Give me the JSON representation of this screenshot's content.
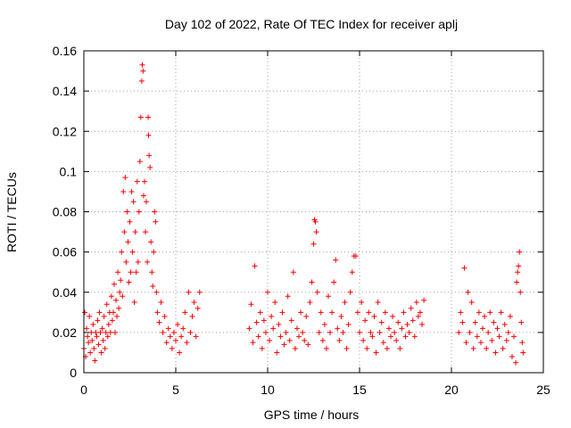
{
  "chart_data": {
    "type": "scatter",
    "title": "Day 102 of 2022, Rate Of TEC Index for receiver aplj",
    "xlabel": "GPS time / hours",
    "ylabel": "ROTI / TECUs",
    "xlim": [
      0,
      25
    ],
    "ylim": [
      0,
      0.16
    ],
    "x_ticks": [
      0,
      5,
      10,
      15,
      20,
      25
    ],
    "y_ticks": [
      0,
      0.02,
      0.04,
      0.06,
      0.08,
      0.1,
      0.12,
      0.14,
      0.16
    ],
    "x_tick_labels": [
      "0",
      "5",
      "10",
      "15",
      "20",
      "25"
    ],
    "y_tick_labels": [
      "0",
      "0.02",
      "0.04",
      "0.06",
      "0.08",
      "0.1",
      "0.12",
      "0.14",
      "0.16"
    ],
    "grid": true,
    "marker": "+",
    "color": "#ff0000",
    "series": [
      {
        "points": [
          [
            0.0,
            0.012
          ],
          [
            0.05,
            0.03
          ],
          [
            0.1,
            0.008
          ],
          [
            0.15,
            0.022
          ],
          [
            0.2,
            0.018
          ],
          [
            0.25,
            0.015
          ],
          [
            0.3,
            0.028
          ],
          [
            0.35,
            0.01
          ],
          [
            0.4,
            0.02
          ],
          [
            0.45,
            0.016
          ],
          [
            0.5,
            0.024
          ],
          [
            0.55,
            0.012
          ],
          [
            0.6,
            0.006
          ],
          [
            0.65,
            0.02
          ],
          [
            0.7,
            0.018
          ],
          [
            0.75,
            0.026
          ],
          [
            0.8,
            0.014
          ],
          [
            0.85,
            0.03
          ],
          [
            0.9,
            0.02
          ],
          [
            0.95,
            0.01
          ],
          [
            1.0,
            0.022
          ],
          [
            1.05,
            0.016
          ],
          [
            1.1,
            0.028
          ],
          [
            1.15,
            0.012
          ],
          [
            1.2,
            0.02
          ],
          [
            1.25,
            0.034
          ],
          [
            1.3,
            0.018
          ],
          [
            1.35,
            0.024
          ],
          [
            1.4,
            0.03
          ],
          [
            1.45,
            0.02
          ],
          [
            1.5,
            0.038
          ],
          [
            1.55,
            0.026
          ],
          [
            1.6,
            0.03
          ],
          [
            1.65,
            0.044
          ],
          [
            1.7,
            0.02
          ],
          [
            1.75,
            0.036
          ],
          [
            1.8,
            0.028
          ],
          [
            1.85,
            0.05
          ],
          [
            1.9,
            0.032
          ],
          [
            1.95,
            0.04
          ],
          [
            2.0,
            0.046
          ],
          [
            2.05,
            0.06
          ],
          [
            2.1,
            0.038
          ],
          [
            2.15,
            0.09
          ],
          [
            2.2,
            0.07
          ],
          [
            2.25,
            0.097
          ],
          [
            2.3,
            0.055
          ],
          [
            2.35,
            0.08
          ],
          [
            2.4,
            0.065
          ],
          [
            2.45,
            0.045
          ],
          [
            2.5,
            0.075
          ],
          [
            2.55,
            0.05
          ],
          [
            2.6,
            0.09
          ],
          [
            2.65,
            0.06
          ],
          [
            2.7,
            0.085
          ],
          [
            2.75,
            0.035
          ],
          [
            2.8,
            0.07
          ],
          [
            2.85,
            0.05
          ],
          [
            2.9,
            0.095
          ],
          [
            2.95,
            0.055
          ],
          [
            3.0,
            0.08
          ],
          [
            3.05,
            0.105
          ],
          [
            3.1,
            0.127
          ],
          [
            3.15,
            0.145
          ],
          [
            3.18,
            0.153
          ],
          [
            3.22,
            0.15
          ],
          [
            3.25,
            0.088
          ],
          [
            3.3,
            0.095
          ],
          [
            3.35,
            0.07
          ],
          [
            3.4,
            0.085
          ],
          [
            3.45,
            0.055
          ],
          [
            3.5,
            0.127
          ],
          [
            3.52,
            0.118
          ],
          [
            3.55,
            0.108
          ],
          [
            3.6,
            0.102
          ],
          [
            3.65,
            0.065
          ],
          [
            3.7,
            0.05
          ],
          [
            3.75,
            0.043
          ],
          [
            3.8,
            0.06
          ],
          [
            3.85,
            0.08
          ],
          [
            3.9,
            0.075
          ],
          [
            3.95,
            0.04
          ],
          [
            4.0,
            0.03
          ],
          [
            4.1,
            0.025
          ],
          [
            4.2,
            0.035
          ],
          [
            4.3,
            0.02
          ],
          [
            4.4,
            0.028
          ],
          [
            4.5,
            0.015
          ],
          [
            4.6,
            0.022
          ],
          [
            4.7,
            0.018
          ],
          [
            4.8,
            0.012
          ],
          [
            4.9,
            0.02
          ],
          [
            5.0,
            0.016
          ],
          [
            5.1,
            0.024
          ],
          [
            5.2,
            0.01
          ],
          [
            5.3,
            0.018
          ],
          [
            5.4,
            0.022
          ],
          [
            5.5,
            0.03
          ],
          [
            5.6,
            0.015
          ],
          [
            5.7,
            0.04
          ],
          [
            5.8,
            0.02
          ],
          [
            5.9,
            0.028
          ],
          [
            6.0,
            0.035
          ],
          [
            6.1,
            0.018
          ],
          [
            6.2,
            0.032
          ],
          [
            6.3,
            0.04
          ],
          [
            9.0,
            0.022
          ],
          [
            9.1,
            0.034
          ],
          [
            9.2,
            0.015
          ],
          [
            9.3,
            0.053
          ],
          [
            9.4,
            0.025
          ],
          [
            9.5,
            0.018
          ],
          [
            9.6,
            0.03
          ],
          [
            9.7,
            0.012
          ],
          [
            9.8,
            0.026
          ],
          [
            9.9,
            0.02
          ],
          [
            10.0,
            0.04
          ],
          [
            10.1,
            0.016
          ],
          [
            10.2,
            0.028
          ],
          [
            10.3,
            0.022
          ],
          [
            10.4,
            0.035
          ],
          [
            10.5,
            0.01
          ],
          [
            10.6,
            0.024
          ],
          [
            10.7,
            0.018
          ],
          [
            10.8,
            0.03
          ],
          [
            10.9,
            0.014
          ],
          [
            11.0,
            0.02
          ],
          [
            11.1,
            0.038
          ],
          [
            11.2,
            0.016
          ],
          [
            11.3,
            0.026
          ],
          [
            11.4,
            0.05
          ],
          [
            11.5,
            0.012
          ],
          [
            11.6,
            0.022
          ],
          [
            11.7,
            0.018
          ],
          [
            11.8,
            0.03
          ],
          [
            11.9,
            0.02
          ],
          [
            12.0,
            0.016
          ],
          [
            12.1,
            0.028
          ],
          [
            12.2,
            0.014
          ],
          [
            12.3,
            0.035
          ],
          [
            12.4,
            0.045
          ],
          [
            12.5,
            0.064
          ],
          [
            12.55,
            0.076
          ],
          [
            12.6,
            0.075
          ],
          [
            12.65,
            0.07
          ],
          [
            12.7,
            0.04
          ],
          [
            12.8,
            0.02
          ],
          [
            12.9,
            0.03
          ],
          [
            13.0,
            0.016
          ],
          [
            13.1,
            0.024
          ],
          [
            13.2,
            0.012
          ],
          [
            13.3,
            0.038
          ],
          [
            13.4,
            0.02
          ],
          [
            13.5,
            0.03
          ],
          [
            13.6,
            0.045
          ],
          [
            13.7,
            0.056
          ],
          [
            13.8,
            0.022
          ],
          [
            13.9,
            0.016
          ],
          [
            14.0,
            0.028
          ],
          [
            14.1,
            0.02
          ],
          [
            14.2,
            0.035
          ],
          [
            14.3,
            0.012
          ],
          [
            14.4,
            0.024
          ],
          [
            14.5,
            0.04
          ],
          [
            14.6,
            0.05
          ],
          [
            14.7,
            0.058
          ],
          [
            14.8,
            0.058
          ],
          [
            14.9,
            0.03
          ],
          [
            15.0,
            0.02
          ],
          [
            15.1,
            0.035
          ],
          [
            15.2,
            0.016
          ],
          [
            15.3,
            0.026
          ],
          [
            15.4,
            0.012
          ],
          [
            15.5,
            0.03
          ],
          [
            15.6,
            0.02
          ],
          [
            15.7,
            0.018
          ],
          [
            15.8,
            0.028
          ],
          [
            15.9,
            0.01
          ],
          [
            16.0,
            0.035
          ],
          [
            16.1,
            0.02
          ],
          [
            16.2,
            0.025
          ],
          [
            16.3,
            0.015
          ],
          [
            16.4,
            0.03
          ],
          [
            16.5,
            0.012
          ],
          [
            16.6,
            0.022
          ],
          [
            16.7,
            0.018
          ],
          [
            16.8,
            0.028
          ],
          [
            16.9,
            0.02
          ],
          [
            17.0,
            0.016
          ],
          [
            17.1,
            0.025
          ],
          [
            17.2,
            0.012
          ],
          [
            17.3,
            0.022
          ],
          [
            17.4,
            0.03
          ],
          [
            17.5,
            0.018
          ],
          [
            17.6,
            0.024
          ],
          [
            17.7,
            0.02
          ],
          [
            17.8,
            0.032
          ],
          [
            17.9,
            0.026
          ],
          [
            18.0,
            0.018
          ],
          [
            18.1,
            0.035
          ],
          [
            18.2,
            0.028
          ],
          [
            18.3,
            0.03
          ],
          [
            18.4,
            0.024
          ],
          [
            18.5,
            0.036
          ],
          [
            20.4,
            0.02
          ],
          [
            20.5,
            0.03
          ],
          [
            20.6,
            0.025
          ],
          [
            20.7,
            0.052
          ],
          [
            20.8,
            0.015
          ],
          [
            20.9,
            0.04
          ],
          [
            21.0,
            0.02
          ],
          [
            21.1,
            0.035
          ],
          [
            21.2,
            0.012
          ],
          [
            21.3,
            0.025
          ],
          [
            21.4,
            0.018
          ],
          [
            21.5,
            0.03
          ],
          [
            21.6,
            0.015
          ],
          [
            21.7,
            0.022
          ],
          [
            21.8,
            0.028
          ],
          [
            21.9,
            0.012
          ],
          [
            22.0,
            0.02
          ],
          [
            22.1,
            0.03
          ],
          [
            22.2,
            0.016
          ],
          [
            22.3,
            0.025
          ],
          [
            22.4,
            0.01
          ],
          [
            22.5,
            0.022
          ],
          [
            22.6,
            0.018
          ],
          [
            22.7,
            0.03
          ],
          [
            22.8,
            0.012
          ],
          [
            22.9,
            0.024
          ],
          [
            23.0,
            0.016
          ],
          [
            23.1,
            0.02
          ],
          [
            23.2,
            0.028
          ],
          [
            23.3,
            0.008
          ],
          [
            23.4,
            0.018
          ],
          [
            23.5,
            0.005
          ],
          [
            23.55,
            0.045
          ],
          [
            23.6,
            0.05
          ],
          [
            23.65,
            0.053
          ],
          [
            23.7,
            0.06
          ],
          [
            23.75,
            0.04
          ],
          [
            23.8,
            0.025
          ],
          [
            23.85,
            0.015
          ],
          [
            23.9,
            0.01
          ]
        ]
      }
    ]
  }
}
